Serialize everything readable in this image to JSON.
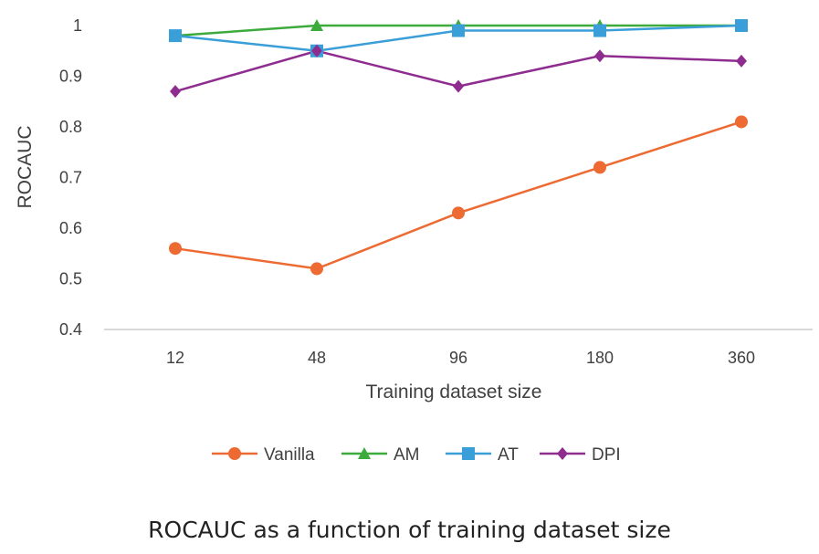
{
  "chart_data": {
    "type": "line",
    "categories": [
      "12",
      "48",
      "96",
      "180",
      "360"
    ],
    "xlabel": "Training dataset size",
    "ylabel": "ROCAUC",
    "ylim": [
      0.4,
      1.0
    ],
    "yticks": [
      0.4,
      0.5,
      0.6,
      0.7,
      0.8,
      0.9,
      1.0
    ],
    "ytick_labels": [
      "0.4",
      "0.5",
      "0.6",
      "0.7",
      "0.8",
      "0.9",
      "1"
    ],
    "grid": false,
    "legend": "bottom",
    "series": [
      {
        "name": "Vanilla",
        "values": [
          0.56,
          0.52,
          0.63,
          0.72,
          0.81
        ],
        "color": "#ED6A32",
        "marker": "circle"
      },
      {
        "name": "AM",
        "values": [
          0.98,
          1.0,
          1.0,
          1.0,
          1.0
        ],
        "color": "#3CAB3C",
        "marker": "triangle"
      },
      {
        "name": "AT",
        "values": [
          0.98,
          0.95,
          0.99,
          0.99,
          1.0
        ],
        "color": "#3A9ED8",
        "marker": "square"
      },
      {
        "name": "DPI",
        "values": [
          0.87,
          0.95,
          0.88,
          0.94,
          0.93
        ],
        "color": "#8E2C8F",
        "marker": "diamond"
      }
    ]
  },
  "caption": "ROCAUC as a function of training dataset size"
}
